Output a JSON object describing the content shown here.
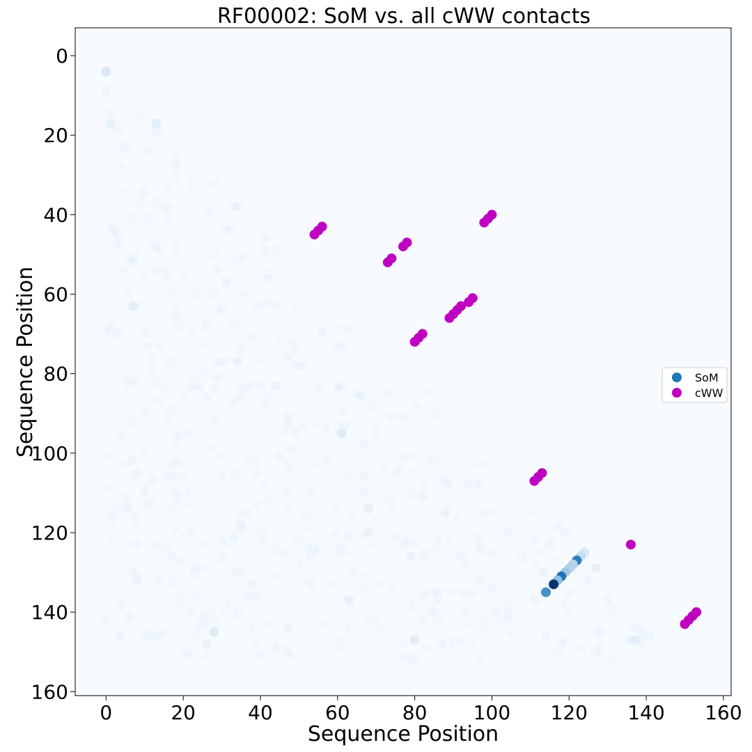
{
  "chart_data": {
    "type": "scatter",
    "title": "RF00002: SoM vs. all cWW contacts",
    "xlabel": "Sequence Position",
    "ylabel": "Sequence Position",
    "xlim": [
      -8,
      162
    ],
    "ylim": [
      161,
      -7
    ],
    "y_inverted": true,
    "x_ticks": [
      0,
      20,
      40,
      60,
      80,
      100,
      120,
      140,
      160
    ],
    "y_ticks": [
      0,
      20,
      40,
      60,
      80,
      100,
      120,
      140,
      160
    ],
    "grid": false,
    "legend_position": "center-right",
    "legend": [
      {
        "label": "SoM",
        "color": "#1f77b4"
      },
      {
        "label": "cWW",
        "color": "#c000c0"
      }
    ],
    "background_color": "#f7fbff",
    "series": [
      {
        "name": "SoM",
        "colormap": "Blues",
        "points": [
          {
            "x": 0,
            "y": 4,
            "v": 0.15
          },
          {
            "x": 13,
            "y": 17,
            "v": 0.1
          },
          {
            "x": 1,
            "y": 17,
            "v": 0.08
          },
          {
            "x": 7,
            "y": 63,
            "v": 0.1
          },
          {
            "x": 61,
            "y": 95,
            "v": 0.12
          },
          {
            "x": 28,
            "y": 145,
            "v": 0.12
          },
          {
            "x": 80,
            "y": 147,
            "v": 0.1
          },
          {
            "x": 137,
            "y": 147,
            "v": 0.1
          },
          {
            "x": 63,
            "y": 137,
            "v": 0.08
          },
          {
            "x": 124,
            "y": 125,
            "v": 0.15
          },
          {
            "x": 123,
            "y": 126,
            "v": 0.25
          },
          {
            "x": 122,
            "y": 127,
            "v": 0.7
          },
          {
            "x": 121,
            "y": 128,
            "v": 0.3
          },
          {
            "x": 120,
            "y": 129,
            "v": 0.3
          },
          {
            "x": 119,
            "y": 130,
            "v": 0.35
          },
          {
            "x": 118,
            "y": 131,
            "v": 0.75
          },
          {
            "x": 117,
            "y": 132,
            "v": 0.4
          },
          {
            "x": 116,
            "y": 133,
            "v": 0.98
          },
          {
            "x": 114,
            "y": 135,
            "v": 0.62
          },
          {
            "x": 127,
            "y": 129,
            "v": 0.08
          }
        ]
      },
      {
        "name": "cWW",
        "color": "#c000c0",
        "points": [
          {
            "x": 54,
            "y": 45
          },
          {
            "x": 55,
            "y": 44
          },
          {
            "x": 56,
            "y": 43
          },
          {
            "x": 73,
            "y": 52
          },
          {
            "x": 74,
            "y": 51
          },
          {
            "x": 77,
            "y": 48
          },
          {
            "x": 78,
            "y": 47
          },
          {
            "x": 98,
            "y": 42
          },
          {
            "x": 99,
            "y": 41
          },
          {
            "x": 100,
            "y": 40
          },
          {
            "x": 89,
            "y": 66
          },
          {
            "x": 90,
            "y": 65
          },
          {
            "x": 91,
            "y": 64
          },
          {
            "x": 92,
            "y": 63
          },
          {
            "x": 94,
            "y": 62
          },
          {
            "x": 95,
            "y": 61
          },
          {
            "x": 80,
            "y": 72
          },
          {
            "x": 81,
            "y": 71
          },
          {
            "x": 82,
            "y": 70
          },
          {
            "x": 111,
            "y": 107
          },
          {
            "x": 112,
            "y": 106
          },
          {
            "x": 113,
            "y": 105
          },
          {
            "x": 136,
            "y": 123
          },
          {
            "x": 150,
            "y": 143
          },
          {
            "x": 151,
            "y": 142
          },
          {
            "x": 152,
            "y": 141
          },
          {
            "x": 153,
            "y": 140
          }
        ]
      }
    ]
  }
}
